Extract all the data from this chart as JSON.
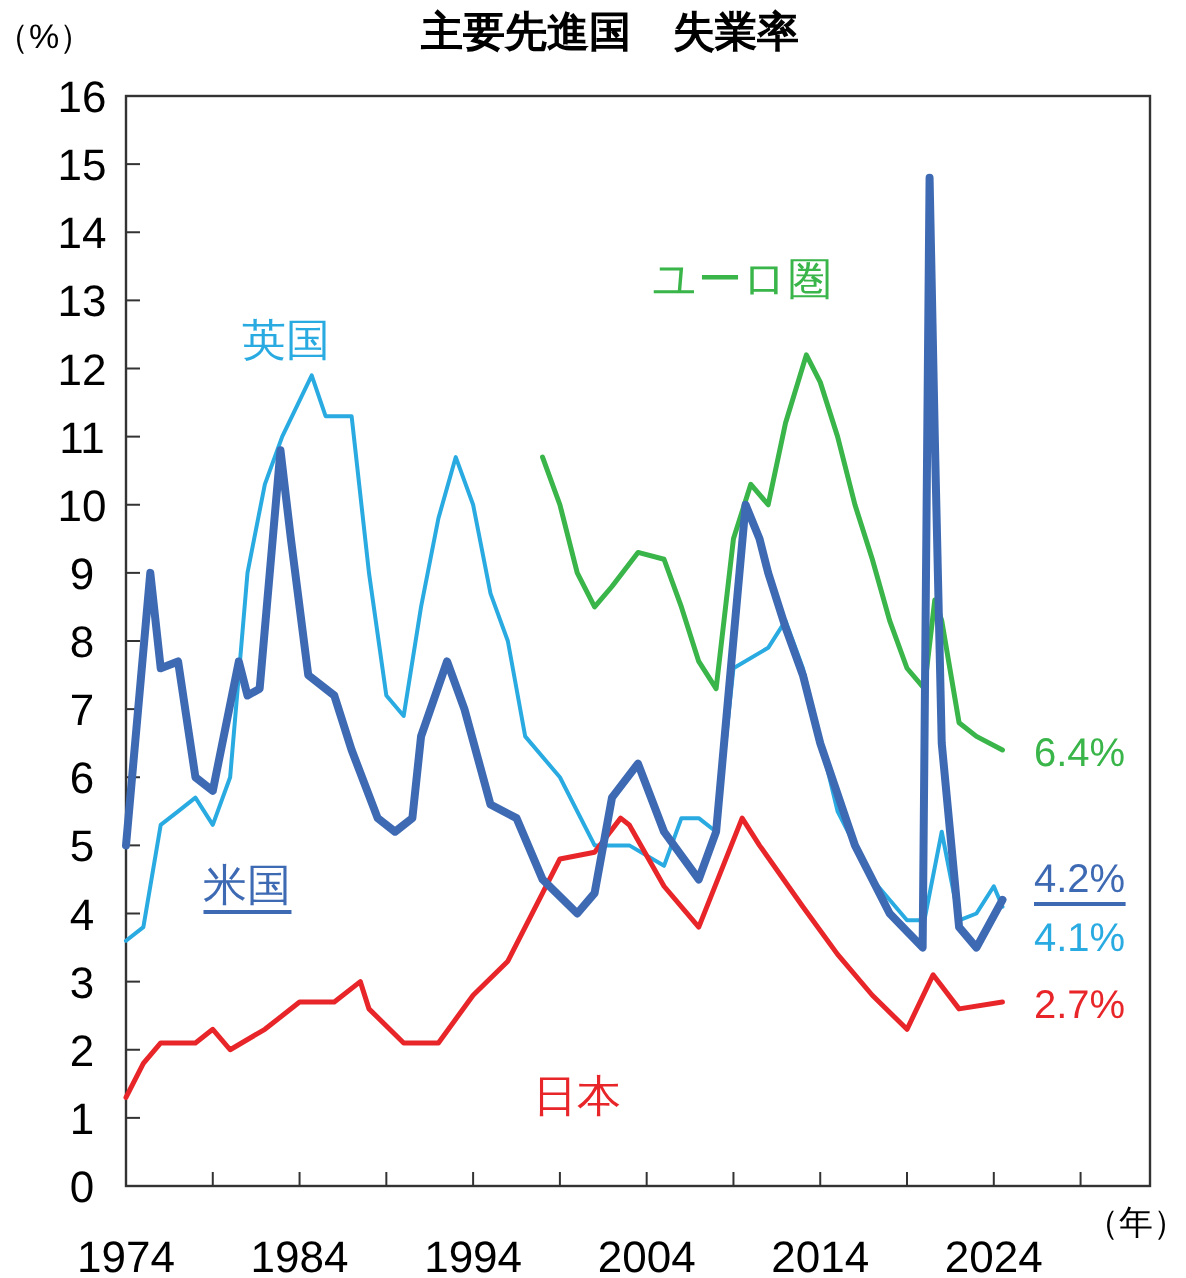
{
  "chart_data": {
    "type": "line",
    "title": "主要先進国　失業率",
    "ylabel": "（%）",
    "xlabel": "（年）",
    "xlim": [
      1974,
      2033
    ],
    "ylim": [
      0,
      16
    ],
    "xticks": [
      1974,
      {
        "value": 1979,
        "label": null
      },
      1984,
      {
        "value": 1989,
        "label": null
      },
      1994,
      {
        "value": 1999,
        "label": null
      },
      2004,
      {
        "value": 2009,
        "label": null
      },
      2014,
      {
        "value": 2019,
        "label": null
      },
      2024,
      {
        "value": 2029,
        "label": null
      }
    ],
    "yticks": [
      0,
      1,
      2,
      3,
      4,
      5,
      6,
      7,
      8,
      9,
      10,
      11,
      12,
      13,
      14,
      15,
      16
    ],
    "grid": false,
    "legend": false,
    "marker": "none",
    "line_style": "solid",
    "series": [
      {
        "name": "米国",
        "color": "#3e6ab4",
        "x": [
          1974,
          1975.4,
          1976,
          1977,
          1978,
          1979,
          1980.5,
          1981,
          1981.7,
          1982.9,
          1983.5,
          1984.5,
          1986,
          1987,
          1988.5,
          1989.5,
          1990.5,
          1991,
          1992.5,
          1993.5,
          1995,
          1996.5,
          1998,
          2000,
          2001,
          2002,
          2003.5,
          2005,
          2007,
          2008,
          2009.7,
          2010.5,
          2011,
          2012,
          2013,
          2014,
          2016,
          2018,
          2019.9,
          2020.3,
          2020.6,
          2021,
          2022,
          2023,
          2024.5
        ],
        "values": [
          5.0,
          9.0,
          7.6,
          7.7,
          6.0,
          5.8,
          7.7,
          7.2,
          7.3,
          10.8,
          9.5,
          7.5,
          7.2,
          6.4,
          5.4,
          5.2,
          5.4,
          6.6,
          7.7,
          7.0,
          5.6,
          5.4,
          4.5,
          4.0,
          4.3,
          5.7,
          6.2,
          5.2,
          4.5,
          5.2,
          10.0,
          9.5,
          9.0,
          8.2,
          7.5,
          6.5,
          5.0,
          4.0,
          3.5,
          14.8,
          11.0,
          6.5,
          3.8,
          3.5,
          4.2
        ],
        "value_labels": [
          null,
          null,
          null,
          null,
          null,
          null,
          null,
          null,
          null,
          null,
          null,
          null,
          null,
          null,
          null,
          null,
          null,
          null,
          null,
          null,
          null,
          null,
          null,
          null,
          null,
          null,
          null,
          null,
          null,
          null,
          null,
          null,
          null,
          null,
          null,
          null,
          null,
          null,
          null,
          null,
          null,
          null,
          null,
          null,
          "4.2%"
        ]
      },
      {
        "name": "英国",
        "color": "#29abe2",
        "x": [
          1974,
          1975,
          1976,
          1977,
          1978,
          1979,
          1980,
          1981,
          1982,
          1983,
          1984.7,
          1985.5,
          1987,
          1988,
          1989,
          1990,
          1991,
          1992,
          1993,
          1994,
          1995,
          1996,
          1997,
          1999,
          2001,
          2003,
          2005,
          2006,
          2007,
          2008,
          2009,
          2011,
          2012,
          2013,
          2015,
          2017,
          2019,
          2020,
          2021,
          2022,
          2023,
          2024,
          2024.5
        ],
        "values": [
          3.6,
          3.8,
          5.3,
          5.5,
          5.7,
          5.3,
          6.0,
          9.0,
          10.3,
          11.0,
          11.9,
          11.3,
          11.3,
          9.0,
          7.2,
          6.9,
          8.5,
          9.8,
          10.7,
          10.0,
          8.7,
          8.0,
          6.6,
          6.0,
          5.0,
          5.0,
          4.7,
          5.4,
          5.4,
          5.2,
          7.6,
          7.9,
          8.3,
          7.6,
          5.5,
          4.5,
          3.9,
          3.9,
          5.2,
          3.9,
          4.0,
          4.4,
          4.1
        ],
        "value_labels": [
          null,
          null,
          null,
          null,
          null,
          null,
          null,
          null,
          null,
          null,
          null,
          null,
          null,
          null,
          null,
          null,
          null,
          null,
          null,
          null,
          null,
          null,
          null,
          null,
          null,
          null,
          null,
          null,
          null,
          null,
          null,
          null,
          null,
          null,
          null,
          null,
          null,
          null,
          null,
          null,
          null,
          null,
          "4.1%"
        ]
      },
      {
        "name": "日本",
        "color": "#e8262a",
        "x": [
          1974,
          1975,
          1976,
          1978,
          1979,
          1980,
          1982,
          1984,
          1986,
          1987.5,
          1988,
          1990,
          1992,
          1994,
          1996,
          1998,
          1999,
          2001,
          2002.5,
          2003,
          2005,
          2007,
          2009.5,
          2010.5,
          2013,
          2015,
          2017,
          2019,
          2020.5,
          2022,
          2024.5
        ],
        "values": [
          1.3,
          1.8,
          2.1,
          2.1,
          2.3,
          2.0,
          2.3,
          2.7,
          2.7,
          3.0,
          2.6,
          2.1,
          2.1,
          2.8,
          3.3,
          4.3,
          4.8,
          4.9,
          5.4,
          5.3,
          4.4,
          3.8,
          5.4,
          5.0,
          4.1,
          3.4,
          2.8,
          2.3,
          3.1,
          2.6,
          2.7
        ],
        "value_labels": [
          null,
          null,
          null,
          null,
          null,
          null,
          null,
          null,
          null,
          null,
          null,
          null,
          null,
          null,
          null,
          null,
          null,
          null,
          null,
          null,
          null,
          null,
          null,
          null,
          null,
          null,
          null,
          null,
          null,
          null,
          "2.7%"
        ]
      },
      {
        "name": "ユーロ圏",
        "color": "#3ab54a",
        "x": [
          1998,
          1999,
          2000,
          2001,
          2002,
          2003.5,
          2005,
          2006,
          2007,
          2008,
          2009,
          2010,
          2011,
          2012,
          2013.2,
          2014,
          2015,
          2016,
          2017,
          2018,
          2019,
          2020,
          2020.6,
          2021,
          2022,
          2023,
          2024.5
        ],
        "values": [
          10.7,
          10.0,
          9.0,
          8.5,
          8.8,
          9.3,
          9.2,
          8.5,
          7.7,
          7.3,
          9.5,
          10.3,
          10.0,
          11.2,
          12.2,
          11.8,
          11.0,
          10.0,
          9.2,
          8.3,
          7.6,
          7.3,
          8.6,
          8.3,
          6.8,
          6.6,
          6.4
        ],
        "value_labels": [
          null,
          null,
          null,
          null,
          null,
          null,
          null,
          null,
          null,
          null,
          null,
          null,
          null,
          null,
          null,
          null,
          null,
          null,
          null,
          null,
          null,
          null,
          null,
          null,
          null,
          null,
          "6.4%"
        ]
      }
    ]
  }
}
